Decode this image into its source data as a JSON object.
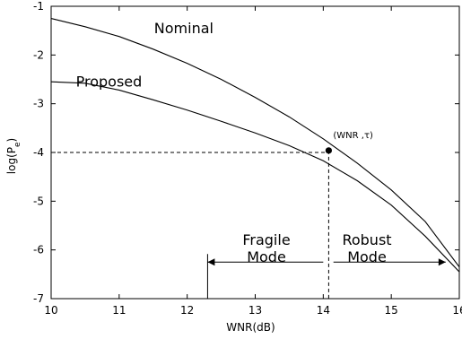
{
  "chart_data": {
    "type": "line",
    "xlabel": "WNR(dB)",
    "ylabel_main": "log(P",
    "ylabel_sub": "e",
    "ylabel_close": ")",
    "xlim": [
      10,
      16
    ],
    "ylim": [
      -7,
      -1
    ],
    "xticks": [
      10,
      11,
      12,
      13,
      14,
      15,
      16
    ],
    "xtick_labels": [
      "10",
      "11",
      "12",
      "13",
      "14",
      "15",
      "16"
    ],
    "yticks": [
      -7,
      -6,
      -5,
      -4,
      -3,
      -2,
      -1
    ],
    "ytick_labels": [
      "-7",
      "-6",
      "-5",
      "-4",
      "-3",
      "-2",
      "-1"
    ],
    "series": [
      {
        "name": "Nominal",
        "x": [
          10.0,
          10.5,
          11.0,
          11.5,
          12.0,
          12.5,
          13.0,
          13.5,
          14.0,
          14.5,
          15.0,
          15.5,
          16.0
        ],
        "y": [
          -1.25,
          -1.42,
          -1.62,
          -1.88,
          -2.17,
          -2.5,
          -2.87,
          -3.27,
          -3.72,
          -4.22,
          -4.77,
          -5.42,
          -6.35
        ]
      },
      {
        "name": "Proposed",
        "x": [
          10.0,
          10.5,
          11.0,
          11.5,
          12.0,
          12.5,
          13.0,
          13.5,
          14.0,
          14.5,
          15.0,
          15.5,
          16.0
        ],
        "y": [
          -2.55,
          -2.58,
          -2.72,
          -2.92,
          -3.13,
          -3.36,
          -3.6,
          -3.86,
          -4.17,
          -4.58,
          -5.08,
          -5.72,
          -6.45
        ]
      }
    ],
    "series_labels": [
      {
        "series": "Nominal",
        "text": "Nominal",
        "x": 11.95,
        "y": -1.55
      },
      {
        "series": "Proposed",
        "text": "Proposed",
        "x": 10.85,
        "y": -2.65
      }
    ],
    "annotations": {
      "point": {
        "x": 14.08,
        "y": -3.96,
        "label": "(WNR ,τ)"
      },
      "dashed_h_y": -4.0,
      "dashed_v_x": 14.08,
      "fragile_mode": {
        "line1": "Fragile",
        "line2": "Mode"
      },
      "robust_mode": {
        "line1": "Robust",
        "line2": "Mode"
      },
      "fragile_arrow": {
        "from_x": 14.0,
        "to_x": 12.3,
        "y": -6.25
      },
      "robust_arrow": {
        "from_x": 14.15,
        "to_x": 15.8,
        "y": -6.25
      },
      "vertical_left_marker_x": 12.3,
      "vertical_left_marker_top_y": -6.25
    },
    "grid": false
  }
}
